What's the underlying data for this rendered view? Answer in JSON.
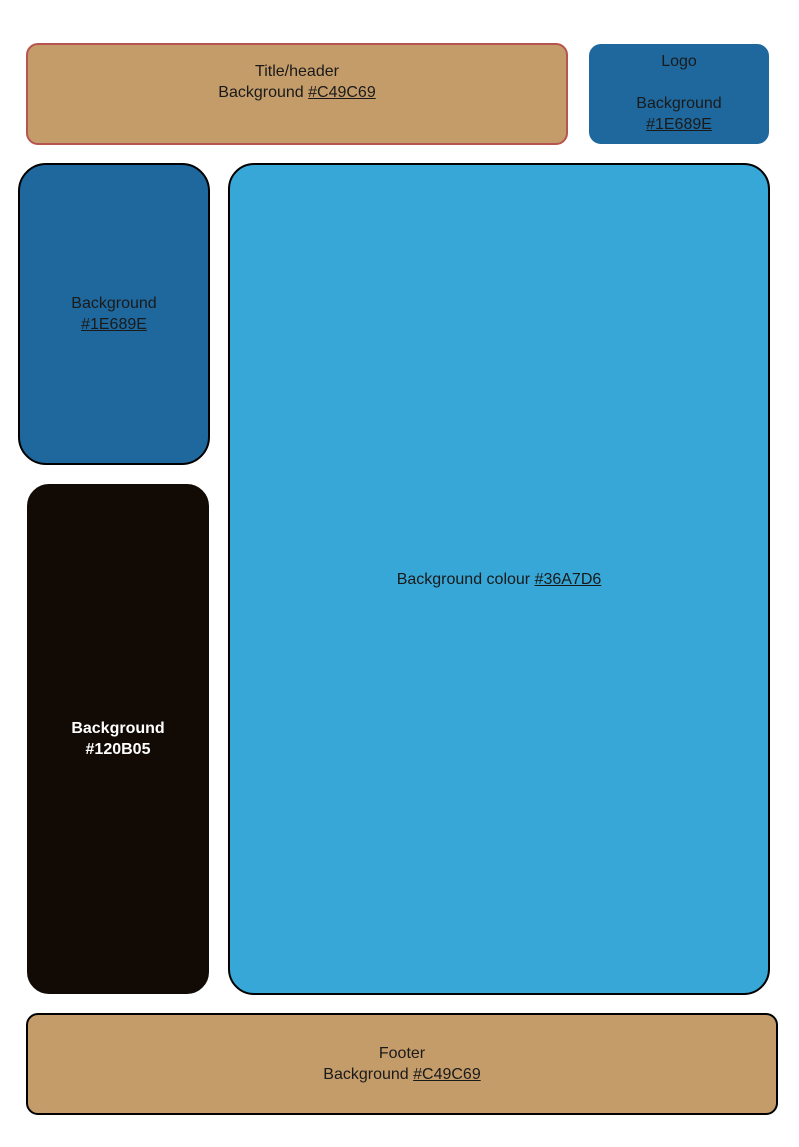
{
  "header": {
    "title": "Title/header",
    "bg_label": "Background ",
    "bg_hex": "#C49C69"
  },
  "logo": {
    "title": "Logo",
    "bg_label": "Background",
    "bg_hex": "#1E689E"
  },
  "sidebar_top": {
    "bg_label": "Background",
    "bg_hex": "#1E689E"
  },
  "sidebar_bottom": {
    "bg_label": "Background",
    "bg_hex": "#120B05"
  },
  "main": {
    "bg_label": "Background colour ",
    "bg_hex": "#36A7D6"
  },
  "footer": {
    "title": "Footer",
    "bg_label": "Background ",
    "bg_hex": "#C49C69"
  },
  "colors": {
    "tan": "#C49C69",
    "blue": "#1E689E",
    "dark": "#120B05",
    "light_blue": "#36A7D6"
  }
}
